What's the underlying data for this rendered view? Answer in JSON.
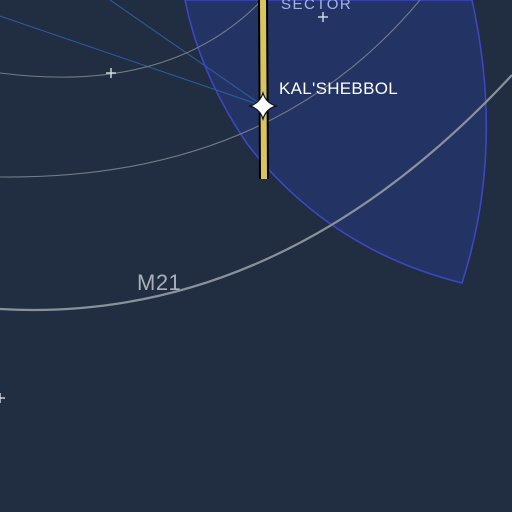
{
  "map": {
    "background_color": "#212d40",
    "sector": {
      "label": "SECTOR",
      "fill_color": "#243566",
      "border_color": "#3c46c2",
      "label_color": "#a7b3ec"
    },
    "system": {
      "label": "KAL'SHEBBOL",
      "label_color": "#ffffff",
      "icon": "four-point-star-icon"
    },
    "route": {
      "label": "M21",
      "label_color": "#a9b0bb",
      "line_color": "#8a919c"
    },
    "lane": {
      "color": "#d8c55e",
      "outline_color": "#000000"
    },
    "orbit_color": "#737c89",
    "hyperlane_color": "#2c5a9c",
    "star_marker_icon": "plus-icon",
    "star_marker_color": "#d8dde6"
  }
}
